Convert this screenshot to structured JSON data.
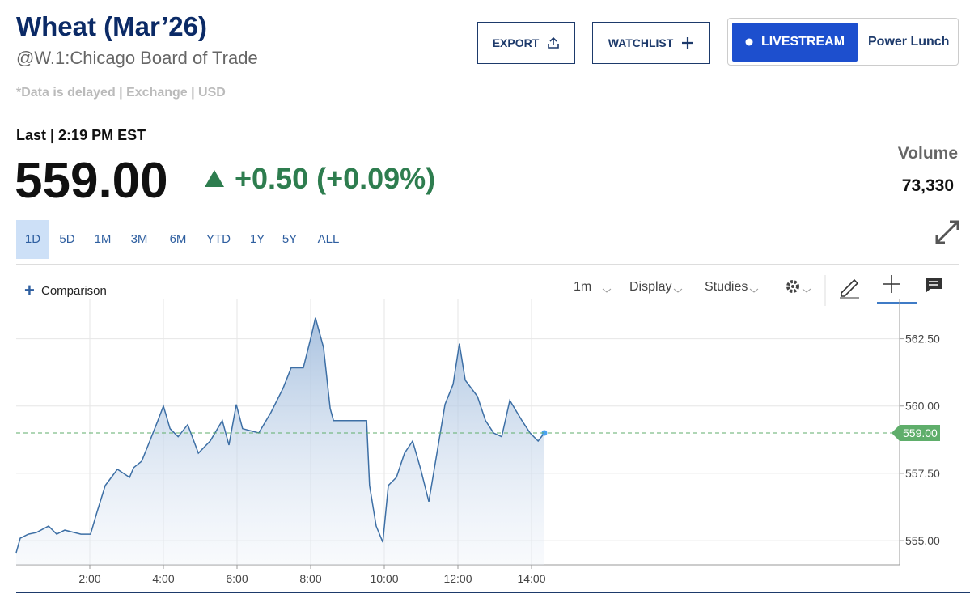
{
  "header": {
    "title": "Wheat (Mar’26)",
    "subtitle": "@W.1:Chicago Board of Trade",
    "note": "*Data is delayed | Exchange | USD",
    "last_label": "Last | 2:19 PM EST",
    "price": "559.00",
    "change": "+0.50 (+0.09%)",
    "volume_label": "Volume",
    "volume": "73,330"
  },
  "buttons": {
    "export": "EXPORT",
    "watchlist": "WATCHLIST",
    "livestream": "LIVESTREAM",
    "show": "Power Lunch"
  },
  "ranges": [
    "1D",
    "5D",
    "1M",
    "3M",
    "6M",
    "YTD",
    "1Y",
    "5Y",
    "ALL"
  ],
  "toolbar": {
    "comparison": "Comparison",
    "interval": "1m",
    "display": "Display",
    "studies": "Studies"
  },
  "chart_data": {
    "type": "area",
    "color": "#3d6fa5",
    "x": [
      0,
      0.11,
      0.33,
      0.55,
      0.88,
      1.1,
      1.32,
      1.76,
      2.02,
      2.2,
      2.42,
      2.75,
      3.08,
      3.19,
      3.41,
      3.63,
      3.85,
      4.0,
      4.18,
      4.4,
      4.66,
      4.95,
      5.27,
      5.6,
      5.78,
      5.98,
      6.15,
      6.59,
      6.92,
      7.25,
      7.47,
      7.8,
      8.02,
      8.13,
      8.35,
      8.53,
      8.62,
      9.52,
      9.6,
      9.78,
      9.96,
      10.11,
      10.33,
      10.55,
      10.77,
      10.99,
      11.21,
      11.43,
      11.65,
      11.87,
      12.04,
      12.2,
      12.53,
      12.75,
      12.97,
      13.19,
      13.41,
      13.74,
      13.96,
      14.18,
      14.35
    ],
    "values": [
      554.55,
      555.09,
      555.24,
      555.3,
      555.54,
      555.24,
      555.39,
      555.24,
      555.24,
      556.08,
      557.05,
      557.65,
      557.35,
      557.71,
      557.95,
      558.7,
      559.46,
      560.0,
      559.16,
      558.86,
      559.31,
      558.25,
      558.7,
      559.46,
      558.55,
      560.06,
      559.16,
      559.0,
      559.76,
      560.66,
      561.42,
      561.42,
      562.62,
      563.28,
      562.17,
      559.91,
      559.46,
      559.46,
      557.05,
      555.54,
      554.94,
      557.05,
      557.35,
      558.25,
      558.7,
      557.65,
      556.45,
      558.25,
      560.06,
      560.81,
      562.32,
      560.96,
      560.36,
      559.46,
      559.0,
      558.86,
      560.21,
      559.46,
      559.0,
      558.7,
      559.0
    ],
    "xlim": [
      0,
      24
    ],
    "ylim": [
      554.1,
      563.6
    ],
    "xticks": [
      {
        "value": 2,
        "label": "2:00"
      },
      {
        "value": 4,
        "label": "4:00"
      },
      {
        "value": 6,
        "label": "6:00"
      },
      {
        "value": 8,
        "label": "8:00"
      },
      {
        "value": 10,
        "label": "10:00"
      },
      {
        "value": 12,
        "label": "12:00"
      },
      {
        "value": 14,
        "label": "14:00"
      }
    ],
    "yticks": [
      {
        "value": 555,
        "label": "555.00"
      },
      {
        "value": 557.5,
        "label": "557.50"
      },
      {
        "value": 560,
        "label": "560.00"
      },
      {
        "value": 562.5,
        "label": "562.50"
      }
    ],
    "last_price": {
      "value": 559,
      "label": "559.00"
    },
    "last_color": "#5fae6b",
    "grid": true
  }
}
